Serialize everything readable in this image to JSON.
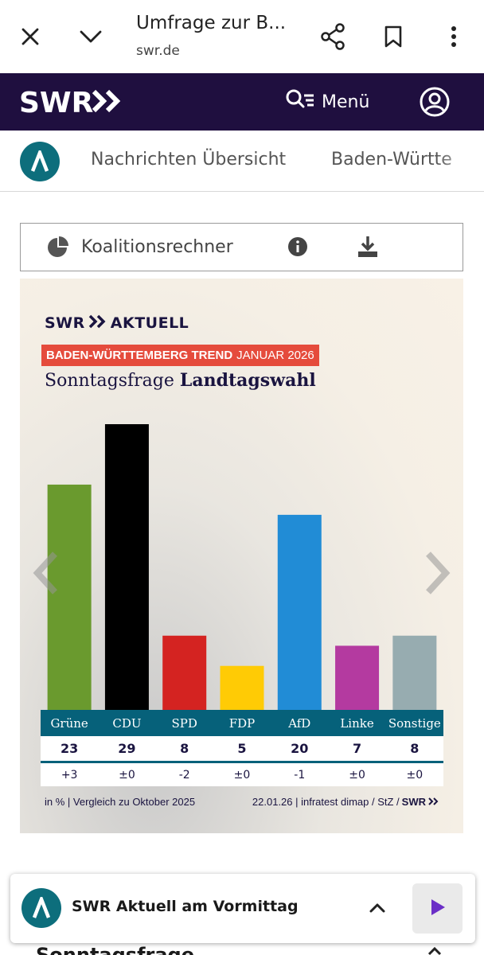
{
  "browser": {
    "title": "Umfrage zur B...",
    "url": "swr.de",
    "icons": [
      "close-icon",
      "chevron-down-icon",
      "share-icon",
      "bookmark-icon",
      "more-vert-icon"
    ]
  },
  "header": {
    "logo_text": "SWR",
    "menu_label": "Menü",
    "background": "#1f0f3f"
  },
  "nav": {
    "items": [
      "Nachrichten Übersicht",
      "Baden-Württe"
    ]
  },
  "toolbar": {
    "label": "Koalitionsrechner"
  },
  "graphic": {
    "brand": "SWR",
    "brand_suffix": "AKTUELL",
    "trend_bold": "BADEN-WÜRTTEMBERG TREND",
    "trend_rest": "JANUAR 2026",
    "headline_pre": "Sonntagsfrage",
    "headline_bold": "Landtagswahl",
    "footnote_left": "in % | Vergleich zu Oktober 2025",
    "footnote_right": "22.01.26 | infratest dimap / StZ /",
    "footnote_brand": "SWR"
  },
  "chart_data": {
    "type": "bar",
    "categories": [
      "Grüne",
      "CDU",
      "SPD",
      "FDP",
      "AfD",
      "Linke",
      "Sonstige"
    ],
    "values": [
      23,
      29,
      8,
      5,
      20,
      7,
      8
    ],
    "changes": [
      "+3",
      "±0",
      "-2",
      "±0",
      "-1",
      "±0",
      "±0"
    ],
    "colors": [
      "#6a9a2e",
      "#000000",
      "#d42321",
      "#ffcb05",
      "#218cd6",
      "#b43aa0",
      "#97acb0"
    ],
    "title": "Sonntagsfrage Landtagswahl",
    "ylim": [
      0,
      29
    ],
    "grid": false
  },
  "player": {
    "title": "SWR Aktuell am Vormittag"
  },
  "below": {
    "heading": "Sonntagsfrage"
  }
}
